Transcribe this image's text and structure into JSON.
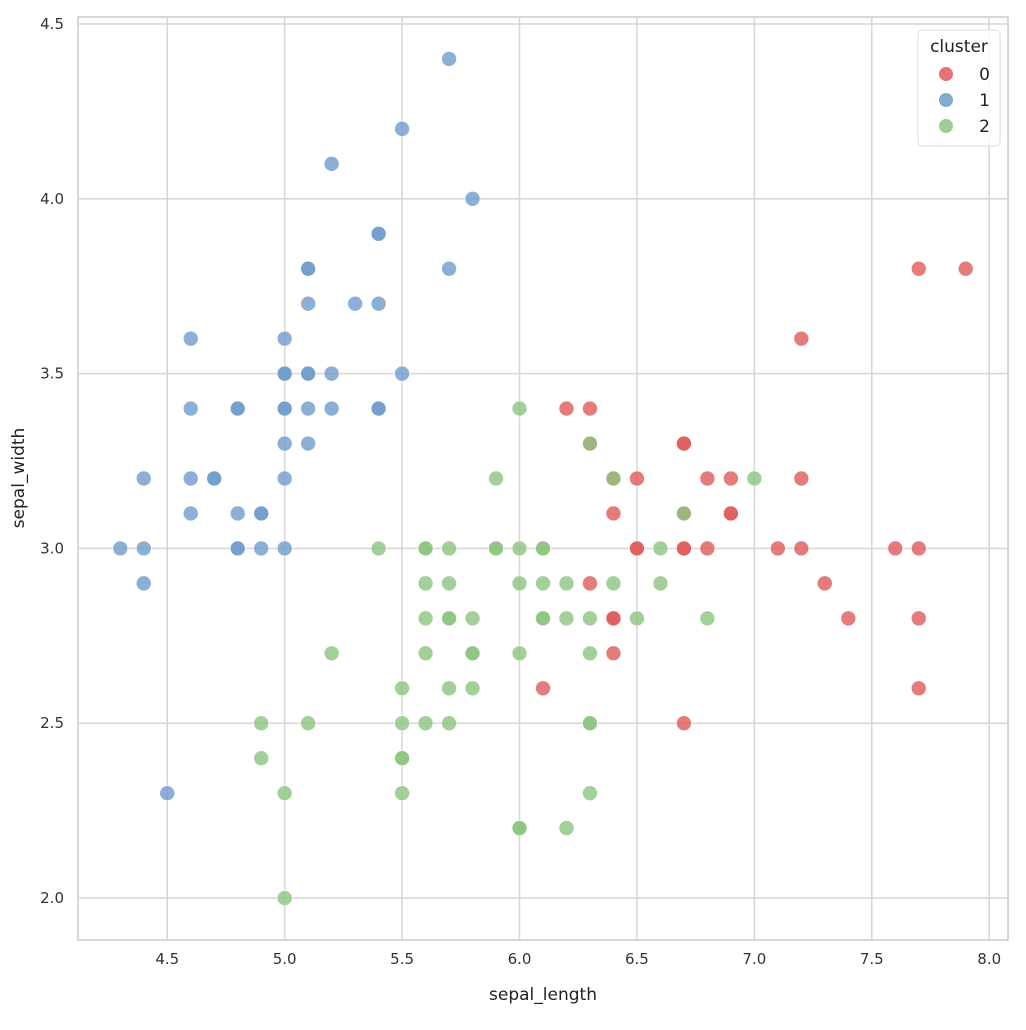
{
  "chart_data": {
    "type": "scatter",
    "title": "",
    "xlabel": "sepal_length",
    "ylabel": "sepal_width",
    "xlim": [
      4.12,
      8.08
    ],
    "ylim": [
      1.88,
      4.52
    ],
    "xticks": [
      "4.5",
      "5.0",
      "5.5",
      "6.0",
      "6.5",
      "7.0",
      "7.5",
      "8.0"
    ],
    "yticks": [
      "2.0",
      "2.5",
      "3.0",
      "3.5",
      "4.0",
      "4.5"
    ],
    "grid": true,
    "legend": {
      "title": "cluster",
      "placement": "top-right"
    },
    "series": [
      {
        "name": "0",
        "color": "#e05a5a",
        "points": [
          [
            7.7,
            3.8
          ],
          [
            7.9,
            3.8
          ],
          [
            7.2,
            3.6
          ],
          [
            6.2,
            3.4
          ],
          [
            6.3,
            3.4
          ],
          [
            6.3,
            3.3
          ],
          [
            6.7,
            3.3
          ],
          [
            6.7,
            3.3
          ],
          [
            6.4,
            3.2
          ],
          [
            6.5,
            3.2
          ],
          [
            6.8,
            3.2
          ],
          [
            6.9,
            3.2
          ],
          [
            7.2,
            3.2
          ],
          [
            6.4,
            3.1
          ],
          [
            6.7,
            3.1
          ],
          [
            6.9,
            3.1
          ],
          [
            6.9,
            3.1
          ],
          [
            6.5,
            3.0
          ],
          [
            6.5,
            3.0
          ],
          [
            6.7,
            3.0
          ],
          [
            6.7,
            3.0
          ],
          [
            6.8,
            3.0
          ],
          [
            7.1,
            3.0
          ],
          [
            7.2,
            3.0
          ],
          [
            7.6,
            3.0
          ],
          [
            7.7,
            3.0
          ],
          [
            6.3,
            2.9
          ],
          [
            7.3,
            2.9
          ],
          [
            6.4,
            2.8
          ],
          [
            6.4,
            2.8
          ],
          [
            7.4,
            2.8
          ],
          [
            7.7,
            2.8
          ],
          [
            6.4,
            2.7
          ],
          [
            6.1,
            2.6
          ],
          [
            7.7,
            2.6
          ],
          [
            6.7,
            2.5
          ]
        ]
      },
      {
        "name": "1",
        "color": "#6f9bcb",
        "points": [
          [
            5.7,
            4.4
          ],
          [
            5.5,
            4.2
          ],
          [
            5.2,
            4.1
          ],
          [
            5.8,
            4.0
          ],
          [
            5.4,
            3.9
          ],
          [
            5.4,
            3.9
          ],
          [
            5.1,
            3.8
          ],
          [
            5.1,
            3.8
          ],
          [
            5.7,
            3.8
          ],
          [
            5.1,
            3.7
          ],
          [
            5.3,
            3.7
          ],
          [
            5.4,
            3.7
          ],
          [
            4.6,
            3.6
          ],
          [
            5.0,
            3.6
          ],
          [
            5.0,
            3.5
          ],
          [
            5.0,
            3.5
          ],
          [
            5.1,
            3.5
          ],
          [
            5.1,
            3.5
          ],
          [
            5.2,
            3.5
          ],
          [
            5.5,
            3.5
          ],
          [
            4.6,
            3.4
          ],
          [
            4.8,
            3.4
          ],
          [
            4.8,
            3.4
          ],
          [
            5.0,
            3.4
          ],
          [
            5.0,
            3.4
          ],
          [
            5.1,
            3.4
          ],
          [
            5.2,
            3.4
          ],
          [
            5.4,
            3.4
          ],
          [
            5.4,
            3.4
          ],
          [
            5.0,
            3.3
          ],
          [
            5.1,
            3.3
          ],
          [
            4.4,
            3.2
          ],
          [
            4.6,
            3.2
          ],
          [
            4.7,
            3.2
          ],
          [
            4.7,
            3.2
          ],
          [
            5.0,
            3.2
          ],
          [
            4.6,
            3.1
          ],
          [
            4.8,
            3.1
          ],
          [
            4.9,
            3.1
          ],
          [
            4.9,
            3.1
          ],
          [
            4.3,
            3.0
          ],
          [
            4.4,
            3.0
          ],
          [
            4.8,
            3.0
          ],
          [
            4.8,
            3.0
          ],
          [
            4.9,
            3.0
          ],
          [
            5.0,
            3.0
          ],
          [
            4.4,
            2.9
          ],
          [
            4.5,
            2.3
          ]
        ]
      },
      {
        "name": "2",
        "color": "#8cc47f",
        "points": [
          [
            6.0,
            3.4
          ],
          [
            5.9,
            3.2
          ],
          [
            7.0,
            3.2
          ],
          [
            6.3,
            3.3
          ],
          [
            6.4,
            3.2
          ],
          [
            6.7,
            3.1
          ],
          [
            5.4,
            3.0
          ],
          [
            5.6,
            3.0
          ],
          [
            5.6,
            3.0
          ],
          [
            5.7,
            3.0
          ],
          [
            5.9,
            3.0
          ],
          [
            5.9,
            3.0
          ],
          [
            6.0,
            3.0
          ],
          [
            6.1,
            3.0
          ],
          [
            6.1,
            3.0
          ],
          [
            6.6,
            3.0
          ],
          [
            5.6,
            2.9
          ],
          [
            5.7,
            2.9
          ],
          [
            6.0,
            2.9
          ],
          [
            6.1,
            2.9
          ],
          [
            6.2,
            2.9
          ],
          [
            6.4,
            2.9
          ],
          [
            6.6,
            2.9
          ],
          [
            5.6,
            2.8
          ],
          [
            5.7,
            2.8
          ],
          [
            5.7,
            2.8
          ],
          [
            5.8,
            2.8
          ],
          [
            6.1,
            2.8
          ],
          [
            6.1,
            2.8
          ],
          [
            6.2,
            2.8
          ],
          [
            6.3,
            2.8
          ],
          [
            6.5,
            2.8
          ],
          [
            6.8,
            2.8
          ],
          [
            5.2,
            2.7
          ],
          [
            5.6,
            2.7
          ],
          [
            5.8,
            2.7
          ],
          [
            5.8,
            2.7
          ],
          [
            6.0,
            2.7
          ],
          [
            6.3,
            2.7
          ],
          [
            5.5,
            2.6
          ],
          [
            5.7,
            2.6
          ],
          [
            5.8,
            2.6
          ],
          [
            4.9,
            2.5
          ],
          [
            5.1,
            2.5
          ],
          [
            5.5,
            2.5
          ],
          [
            5.6,
            2.5
          ],
          [
            5.7,
            2.5
          ],
          [
            6.3,
            2.5
          ],
          [
            6.3,
            2.5
          ],
          [
            4.9,
            2.4
          ],
          [
            5.5,
            2.4
          ],
          [
            5.5,
            2.4
          ],
          [
            5.0,
            2.3
          ],
          [
            5.5,
            2.3
          ],
          [
            6.3,
            2.3
          ],
          [
            6.0,
            2.2
          ],
          [
            6.0,
            2.2
          ],
          [
            6.2,
            2.2
          ],
          [
            5.0,
            2.0
          ]
        ]
      }
    ]
  }
}
